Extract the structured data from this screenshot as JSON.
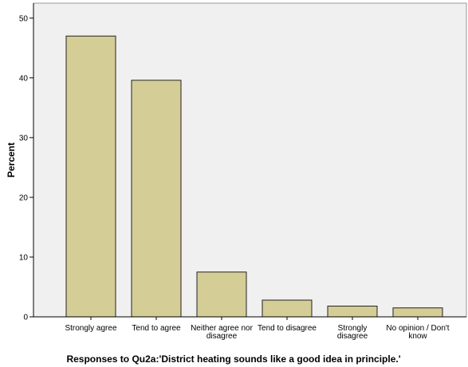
{
  "chart_data": {
    "type": "bar",
    "categories": [
      [
        "Strongly agree"
      ],
      [
        "Tend to agree"
      ],
      [
        "Neither agree nor",
        "disagree"
      ],
      [
        "Tend to disagree"
      ],
      [
        "Strongly",
        "disagree"
      ],
      [
        "No opinion / Don't",
        "know"
      ]
    ],
    "values": [
      47.0,
      39.6,
      7.5,
      2.8,
      1.8,
      1.5
    ],
    "ylabel": "Percent",
    "xlabel": "Responses to Qu2a:'District heating sounds like a good idea in principle.'",
    "ylim": [
      0,
      52.5
    ],
    "yticks": [
      0,
      10,
      20,
      30,
      40,
      50
    ],
    "grid": false,
    "colors": {
      "bar_fill": "#d4cd96",
      "bar_stroke": "#222222",
      "plot_bg": "#f0f0f0",
      "axis": "#000000",
      "frame": "#999999"
    }
  }
}
